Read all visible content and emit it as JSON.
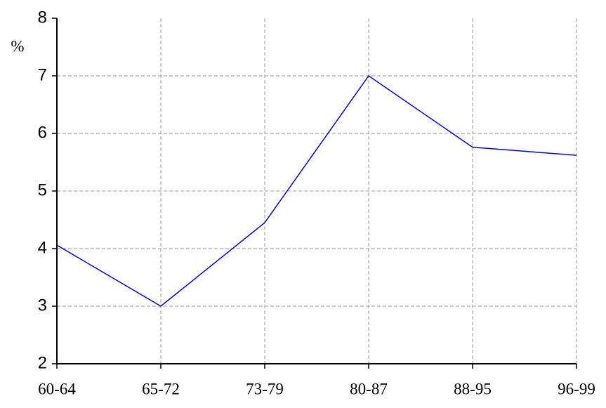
{
  "chart_data": {
    "type": "line",
    "y_label": "%",
    "categories": [
      "60-64",
      "65-72",
      "73-79",
      "80-87",
      "88-95",
      "96-99"
    ],
    "series": [
      {
        "color": "#0000ff",
        "values": [
          4.06,
          3.0,
          4.45,
          7.0,
          5.76,
          5.62
        ]
      }
    ],
    "ylim": [
      2,
      8
    ],
    "yticks": [
      2,
      3,
      4,
      5,
      6,
      7,
      8
    ],
    "grid": true
  }
}
